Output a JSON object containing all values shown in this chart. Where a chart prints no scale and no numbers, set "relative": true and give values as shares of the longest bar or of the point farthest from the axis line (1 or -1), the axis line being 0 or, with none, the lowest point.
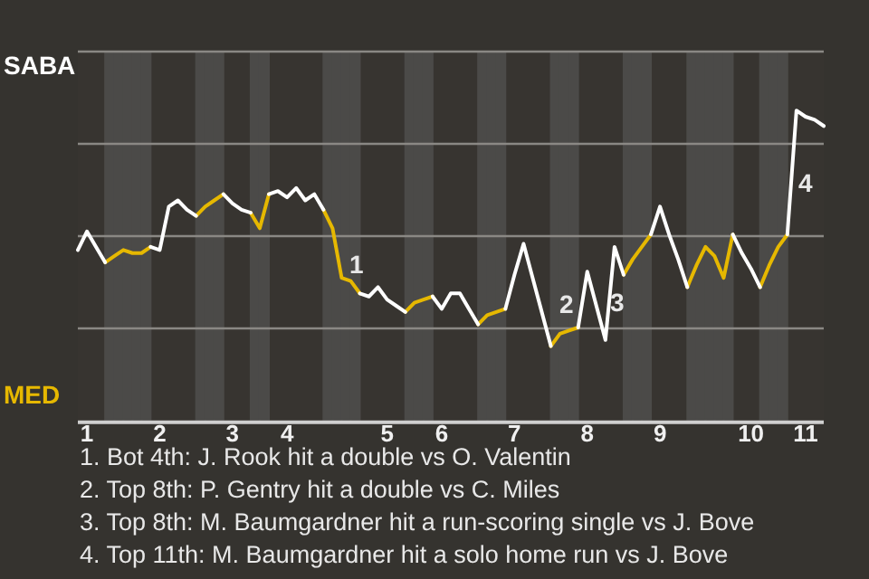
{
  "chart_data": {
    "type": "line",
    "relative": true,
    "grid": "y",
    "legend": false,
    "marker": "none",
    "line_style": "solid",
    "categories": [
      null,
      "1",
      null,
      null,
      null,
      null,
      null,
      null,
      null,
      "2",
      null,
      null,
      null,
      null,
      null,
      null,
      null,
      "3",
      null,
      null,
      null,
      null,
      null,
      "4",
      null,
      null,
      null,
      null,
      null,
      null,
      null,
      null,
      null,
      null,
      "5",
      null,
      null,
      null,
      null,
      null,
      "6",
      null,
      null,
      null,
      null,
      null,
      null,
      null,
      "7",
      null,
      null,
      null,
      null,
      null,
      null,
      null,
      "8",
      null,
      null,
      null,
      null,
      null,
      null,
      null,
      "9",
      null,
      null,
      null,
      null,
      null,
      null,
      null,
      null,
      null,
      "10",
      null,
      null,
      null,
      null,
      null,
      "11",
      null,
      null
    ],
    "series": [
      {
        "color": "#ffffff",
        "values": [
          0.55,
          0.61,
          0.56,
          0.51,
          null,
          null,
          null,
          null,
          0.56,
          0.55,
          0.69,
          0.71,
          0.68,
          0.66,
          null,
          null,
          0.73,
          0.7,
          0.68,
          0.67,
          null,
          0.73,
          0.74,
          0.72,
          0.75,
          0.71,
          0.73,
          0.68,
          null,
          null,
          null,
          0.41,
          0.4,
          0.43,
          0.39,
          0.37,
          0.35,
          null,
          null,
          0.4,
          0.36,
          0.41,
          0.41,
          0.36,
          0.31,
          null,
          null,
          0.36,
          0.47,
          0.57,
          0.46,
          0.35,
          0.24,
          null,
          null,
          0.3,
          0.48,
          0.37,
          0.26,
          0.56,
          0.47,
          null,
          null,
          0.6,
          0.69,
          0.6,
          0.52,
          0.43,
          null,
          null,
          null,
          null,
          0.6,
          0.54,
          0.49,
          0.43,
          null,
          null,
          0.6,
          1.0,
          0.98,
          0.97,
          0.95
        ]
      },
      {
        "color": "#e6b800",
        "values": [
          null,
          null,
          null,
          0.51,
          0.53,
          0.55,
          0.54,
          0.54,
          0.56,
          null,
          null,
          null,
          null,
          0.66,
          0.69,
          0.71,
          0.73,
          null,
          null,
          0.67,
          0.62,
          0.73,
          null,
          null,
          null,
          null,
          null,
          0.68,
          0.62,
          0.46,
          0.45,
          0.41,
          null,
          null,
          null,
          null,
          0.35,
          0.38,
          0.39,
          0.4,
          null,
          null,
          null,
          null,
          0.31,
          0.34,
          0.35,
          0.36,
          null,
          null,
          null,
          null,
          0.24,
          0.28,
          0.29,
          0.3,
          null,
          null,
          null,
          null,
          0.47,
          0.52,
          0.56,
          0.6,
          null,
          null,
          null,
          0.43,
          0.5,
          0.56,
          0.53,
          0.46,
          0.6,
          null,
          null,
          0.43,
          0.5,
          0.56,
          0.6,
          null,
          null,
          null,
          null
        ]
      }
    ],
    "annotations": [
      "SABA",
      "MED",
      "1",
      "2",
      "3",
      "4",
      "1. Bot 4th: J. Rook hit a double vs O. Valentin",
      "2. Top 8th: P. Gentry hit a double vs C. Miles",
      "3. Top 8th: M. Baumgardner hit a run-scoring single vs J. Bove",
      "4. Top 11th: M. Baumgardner hit a solo home run vs J. Bove"
    ]
  }
}
